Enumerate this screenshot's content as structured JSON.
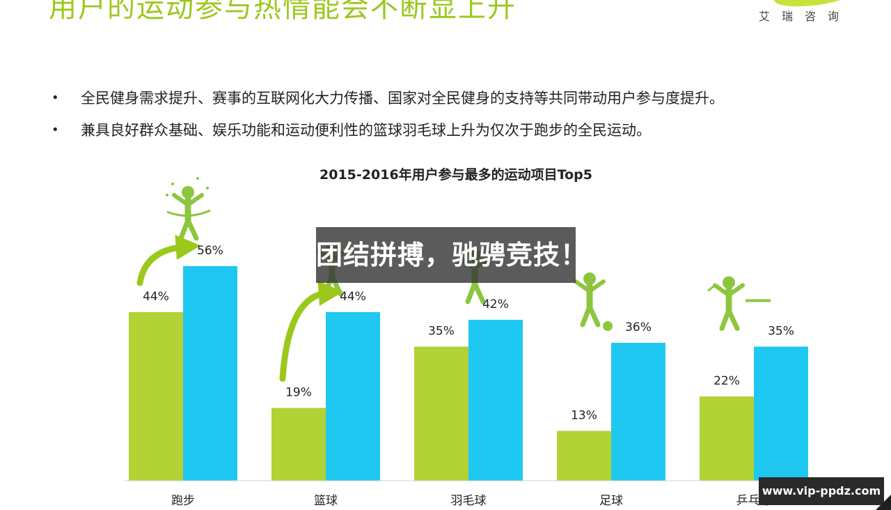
{
  "header": {
    "headline": "用户的运动参与热情能会不断显上升",
    "brand": "艾瑞咨询"
  },
  "bullets": [
    "全民健身需求提升、赛事的互联网化大力传播、国家对全民健身的支持等共同带动用户参与度提升。",
    "兼具良好群众基础、娱乐功能和运动便利性的篮球羽毛球上升为仅次于跑步的全民运动。"
  ],
  "chart_data": {
    "type": "bar",
    "title": "2015-2016年用户参与最多的运动项目Top5",
    "categories": [
      "跑步",
      "篮球",
      "羽毛球",
      "足球",
      "乒乓球"
    ],
    "series": [
      {
        "values": [
          44,
          19,
          35,
          13,
          22
        ],
        "labels": [
          "44%",
          "19%",
          "35%",
          "13%",
          "22%"
        ],
        "color": "#b2d235"
      },
      {
        "values": [
          56,
          44,
          42,
          36,
          35
        ],
        "labels": [
          "56%",
          "44%",
          "42%",
          "36%",
          "35%"
        ],
        "color": "#1fc8f1"
      }
    ],
    "unit": "%",
    "ylim": [
      0,
      56
    ],
    "grid": false,
    "icons": [
      "runner-finish-icon",
      "basketball-player-icon",
      "badminton-player-icon",
      "soccer-player-icon",
      "table-tennis-player-icon"
    ],
    "growth_arrows": [
      "跑步",
      "篮球"
    ]
  },
  "overlay": {
    "banner": "团结拼搏，驰骋竞技！",
    "watermark": "www.vip-ppdz.com"
  },
  "colors": {
    "accent_green": "#b2d235",
    "accent_blue": "#1fc8f1",
    "headline_green": "#9cc81e"
  }
}
